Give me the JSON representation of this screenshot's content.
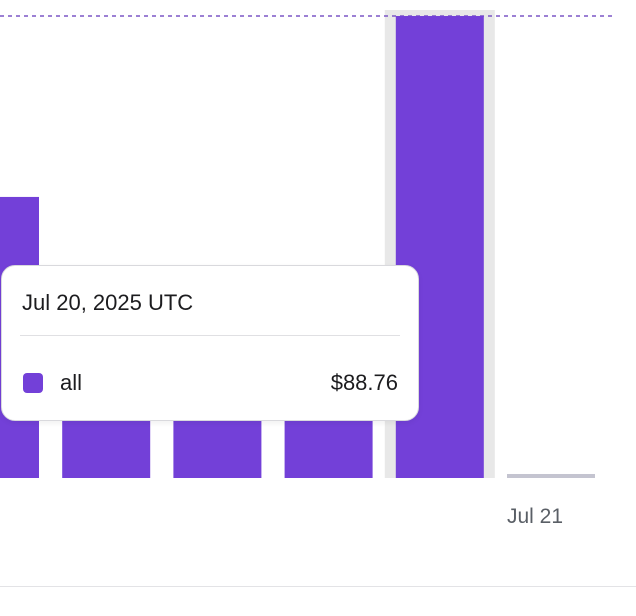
{
  "colors": {
    "bar": "#7340d8",
    "hover_band": "#e8e8e8",
    "reference_line": "#7b56c6",
    "empty_bar": "#c4c4d0"
  },
  "chart_data": {
    "type": "bar",
    "categories": [
      "",
      "",
      "",
      "",
      "Jul 20, 2025",
      "Jul 21"
    ],
    "series": [
      {
        "name": "all",
        "values": [
          54,
          40,
          40,
          40,
          88.76,
          0
        ]
      }
    ],
    "visible_tick_labels": [
      {
        "category_index": 5,
        "label": "Jul 21"
      }
    ],
    "ylim": [
      0,
      90.3
    ],
    "reference_line": 88.76,
    "highlighted_index": 4,
    "grid": false,
    "legend": "none"
  },
  "tooltip": {
    "date": "Jul 20, 2025 UTC",
    "series_name": "all",
    "value": "$88.76"
  }
}
